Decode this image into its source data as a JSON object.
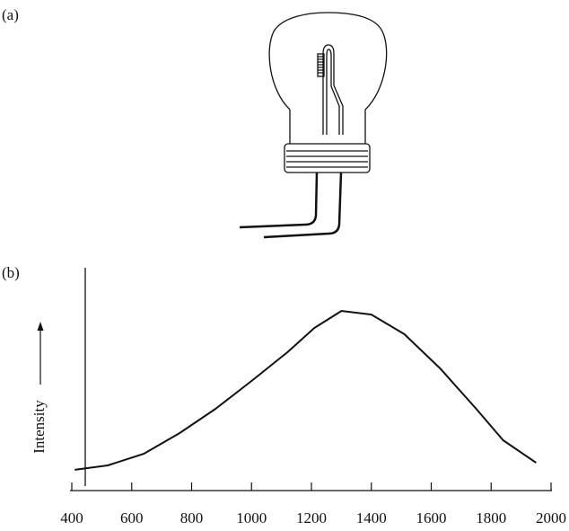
{
  "chart_data": {
    "type": "line",
    "panel_a_label": "(a)",
    "panel_b_label": "(b)",
    "y_label": "Intensity",
    "x": [
      410,
      520,
      640,
      760,
      880,
      1000,
      1120,
      1210,
      1300,
      1400,
      1510,
      1630,
      1750,
      1840,
      1950
    ],
    "values": [
      9.3,
      11.3,
      16.5,
      25.8,
      36.7,
      49.2,
      62.1,
      73.0,
      80.6,
      79.0,
      70.2,
      54.8,
      36.7,
      22.6,
      12.5
    ],
    "color": "#111111",
    "xlim": [
      400,
      2000
    ],
    "xticks": [
      400,
      600,
      800,
      1000,
      1200,
      1400,
      1600,
      1800,
      2000
    ],
    "ylim": [
      0,
      100
    ]
  }
}
